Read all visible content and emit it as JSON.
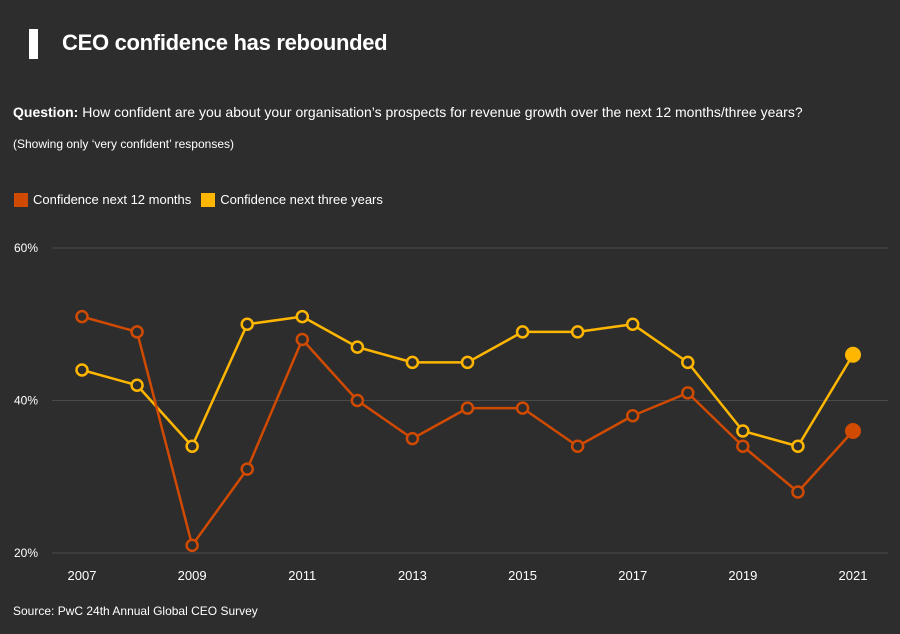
{
  "header": {
    "title": "CEO confidence has rebounded",
    "question_label": "Question:",
    "question_text": " How confident are you about your organisation’s prospects for revenue growth over the next 12 months/three years?",
    "note": "(Showing only ‘very confident’ responses)",
    "source": "Source: PwC 24th Annual Global CEO Survey"
  },
  "colors": {
    "background": "#2d2d2d",
    "series_12m": "#d04a02",
    "series_3y": "#ffb600",
    "grid": "#4a4a4a"
  },
  "chart_data": {
    "type": "line",
    "title": "CEO confidence has rebounded",
    "xlabel": "",
    "ylabel": "",
    "x": [
      2007,
      2008,
      2009,
      2010,
      2011,
      2012,
      2013,
      2014,
      2015,
      2016,
      2017,
      2018,
      2019,
      2020,
      2021
    ],
    "x_tick_labels": [
      "2007",
      "2009",
      "2011",
      "2013",
      "2015",
      "2017",
      "2019",
      "2021"
    ],
    "y_tick_labels": [
      "20%",
      "40%",
      "60%"
    ],
    "y_ticks": [
      20,
      40,
      60
    ],
    "ylim": [
      20,
      60
    ],
    "grid": true,
    "legend_position": "top-left",
    "series": [
      {
        "name": "Confidence next 12 months",
        "color": "#d04a02",
        "values": [
          51,
          49,
          21,
          31,
          48,
          40,
          35,
          39,
          39,
          34,
          38,
          41,
          34,
          28,
          36
        ]
      },
      {
        "name": "Confidence next three years",
        "color": "#ffb600",
        "values": [
          44,
          42,
          34,
          50,
          51,
          47,
          45,
          45,
          49,
          49,
          50,
          45,
          36,
          34,
          46
        ]
      }
    ]
  }
}
